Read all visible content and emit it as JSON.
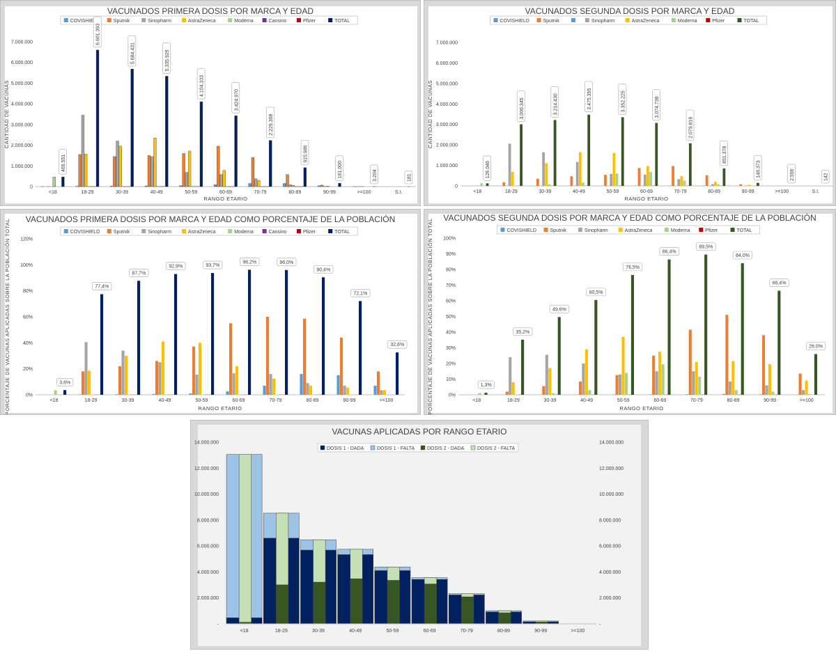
{
  "colors": {
    "COVISHIELD": "#5b9bd5",
    "Sputnik": "#ed7d31",
    "Sinopharm": "#a5a5a5",
    "AstraZeneca": "#ffc000",
    "Moderna": "#a9d18e",
    "Cansino": "#7030a0",
    "Pfizer": "#c00000",
    "TOTAL1": "#002060",
    "TOTAL2": "#375623",
    "D1_DADA": "#002060",
    "D1_FALTA": "#9dc3e6",
    "D2_DADA": "#375623",
    "D2_FALTA": "#c5e0b4"
  },
  "chart_data": [
    {
      "id": "c1",
      "type": "bar",
      "title": "VACUNADOS PRIMERA DOSIS POR MARCA Y EDAD",
      "xlabel": "RANGO ETARIO",
      "ylabel": "CANTIDAD DE VACUNAS",
      "ylim": [
        0,
        7000000
      ],
      "yticks": [
        "0",
        "1.000.000",
        "2.000.000",
        "3.000.000",
        "4.000.000",
        "5.000.000",
        "6.000.000",
        "7.000.000"
      ],
      "categories": [
        "<18",
        "18-29",
        "30-39",
        "40-49",
        "50-59",
        "60-69",
        "70-79",
        "80-89",
        "90-99",
        ">=100",
        "S.I."
      ],
      "series": [
        {
          "name": "COVISHIELD",
          "values": [
            2000,
            15000,
            20000,
            30000,
            40000,
            90000,
            150000,
            150000,
            40000,
            1000,
            0
          ]
        },
        {
          "name": "Sputnik",
          "values": [
            0,
            1550000,
            1450000,
            1500000,
            1600000,
            1950000,
            1400000,
            580000,
            70000,
            2000,
            0
          ]
        },
        {
          "name": "Sinopharm",
          "values": [
            2000,
            3450000,
            2200000,
            1450000,
            680000,
            580000,
            380000,
            90000,
            10000,
            500,
            0
          ]
        },
        {
          "name": "AstraZeneca",
          "values": [
            0,
            1570000,
            1960000,
            2350000,
            1720000,
            780000,
            300000,
            60000,
            20000,
            500,
            0
          ]
        },
        {
          "name": "Moderna",
          "values": [
            460000,
            5000,
            5000,
            5000,
            5000,
            5000,
            5000,
            5000,
            0,
            0,
            0
          ]
        },
        {
          "name": "Cansino",
          "values": [
            0,
            5000,
            5000,
            5000,
            5000,
            5000,
            5000,
            5000,
            0,
            0,
            0
          ]
        },
        {
          "name": "Pfizer",
          "values": [
            0,
            5000,
            5000,
            5000,
            5000,
            5000,
            5000,
            5000,
            0,
            0,
            0
          ]
        },
        {
          "name": "TOTAL",
          "values": [
            469551,
            6601393,
            5684431,
            5335929,
            4104103,
            3424970,
            2229308,
            915986,
            161000,
            3204,
            181
          ]
        }
      ],
      "data_labels": [
        "469.551",
        "6.601.393",
        "5.684.431",
        "5.335.929",
        "4.104.103",
        "3.424.970",
        "2.229.308",
        "915.986",
        "161.000",
        "3.204",
        "181"
      ]
    },
    {
      "id": "c2",
      "type": "bar",
      "title": "VACUNADOS SEGUNDA DOSIS POR MARCA Y EDAD",
      "xlabel": "RANGO ETARIO",
      "ylabel": "CANTIDAD DE VACUNAS",
      "ylim": [
        0,
        7000000
      ],
      "yticks": [
        "0",
        "1.000.000",
        "2.000.000",
        "3.000.000",
        "4.000.000",
        "5.000.000",
        "6.000.000",
        "7.000.000"
      ],
      "categories": [
        "<18",
        "18-29",
        "30-39",
        "40-49",
        "50-59",
        "60-69",
        "70-79",
        "80-89",
        "90-99",
        ">=100",
        "S.I."
      ],
      "series": [
        {
          "name": "COVISHIELD",
          "values": [
            0,
            5000,
            5000,
            10000,
            10000,
            10000,
            10000,
            10000,
            0,
            0,
            0
          ]
        },
        {
          "name": "Sputnik",
          "values": [
            0,
            180000,
            350000,
            470000,
            540000,
            870000,
            970000,
            520000,
            80000,
            2000,
            0
          ]
        },
        {
          "name": "",
          "values": [
            0,
            5000,
            5000,
            5000,
            5000,
            5000,
            5000,
            5000,
            0,
            0,
            0
          ]
        },
        {
          "name": "Sinopharm",
          "values": [
            20000,
            2060000,
            1640000,
            1170000,
            580000,
            550000,
            330000,
            90000,
            20000,
            500,
            0
          ]
        },
        {
          "name": "AstraZeneca",
          "values": [
            0,
            680000,
            1110000,
            1650000,
            1610000,
            970000,
            480000,
            210000,
            50000,
            500,
            0
          ]
        },
        {
          "name": "Moderna",
          "values": [
            130000,
            5000,
            80000,
            160000,
            600000,
            680000,
            260000,
            80000,
            20000,
            0,
            0
          ]
        },
        {
          "name": "Pfizer",
          "values": [
            0,
            5000,
            5000,
            5000,
            5000,
            5000,
            5000,
            5000,
            0,
            0,
            0
          ]
        },
        {
          "name": "TOTAL",
          "values": [
            126046,
            3006345,
            3214430,
            3475355,
            3352225,
            3074738,
            2079616,
            851378,
            148373,
            2556,
            142
          ]
        }
      ],
      "data_labels": [
        "126.046",
        "3.006.345",
        "3.214.430",
        "3.475.355",
        "3.352.225",
        "3.074.738",
        "2.079.616",
        "851.378",
        "148.373",
        "2.556",
        "142"
      ]
    },
    {
      "id": "c3",
      "type": "bar",
      "title": "VACUNADOS PRIMERA DOSIS POR MARCA Y EDAD COMO PORCENTAJE DE LA POBLACIÓN",
      "xlabel": "RANGO ETARIO",
      "ylabel": "PORCENTAJE DE VACUNAS APLICADAS SOBRE LA POBLACIÓN TOTAL",
      "ylim": [
        0,
        120
      ],
      "yticks": [
        "0%",
        "20%",
        "40%",
        "60%",
        "80%",
        "100%",
        "120%"
      ],
      "categories": [
        "<18",
        "18-29",
        "30-39",
        "40-49",
        "50-59",
        "60-69",
        "70-79",
        "80-89",
        "90-99",
        ">=100"
      ],
      "series": [
        {
          "name": "COVISHIELD",
          "values": [
            0,
            0.3,
            0.4,
            0.6,
            1.0,
            2.6,
            7.0,
            16.0,
            15.0,
            7.0
          ]
        },
        {
          "name": "Sputnik",
          "values": [
            0,
            18,
            22,
            26,
            37,
            55,
            60,
            58.5,
            44,
            18
          ]
        },
        {
          "name": "Sinopharm",
          "values": [
            0,
            40.5,
            34,
            25,
            15.5,
            16.5,
            16,
            9,
            7,
            3.5
          ]
        },
        {
          "name": "AstraZeneca",
          "values": [
            0,
            18.5,
            30,
            41,
            40,
            22,
            12.5,
            7,
            5.5,
            3.5
          ]
        },
        {
          "name": "Moderna",
          "values": [
            3.5,
            0.1,
            0.1,
            0.1,
            0.1,
            0.1,
            0.1,
            0.2,
            0.2,
            0.1
          ]
        },
        {
          "name": "Cansino",
          "values": [
            0,
            0.1,
            0.1,
            0.1,
            0.1,
            0.1,
            0.1,
            0.1,
            0,
            0
          ]
        },
        {
          "name": "Pfizer",
          "values": [
            0,
            0.1,
            0.1,
            0.1,
            0.1,
            0.1,
            0.1,
            0.1,
            0,
            0
          ]
        },
        {
          "name": "TOTAL",
          "values": [
            3.6,
            77.4,
            87.7,
            92.9,
            93.7,
            96.2,
            96.0,
            90.4,
            72.1,
            32.6
          ]
        }
      ],
      "data_labels": [
        "3,6%",
        "77,4%",
        "87,7%",
        "92,9%",
        "93,7%",
        "96,2%",
        "96,0%",
        "90,4%",
        "72,1%",
        "32,6%"
      ]
    },
    {
      "id": "c4",
      "type": "bar",
      "title": "VACUNADOS SEGUNDA DOSIS POR MARCA Y EDAD COMO PORCENTAJE DE LA POBLACIÓN",
      "xlabel": "RANGO ETARIO",
      "ylabel": "PORCENTAJE DE VACUNAS APLICADAS SOBRE LA POBLACIÓN TOTAL",
      "ylim": [
        0,
        100
      ],
      "yticks": [
        "0%",
        "10%",
        "20%",
        "30%",
        "40%",
        "50%",
        "60%",
        "70%",
        "80%",
        "90%",
        "100%"
      ],
      "categories": [
        "<18",
        "18-29",
        "30-39",
        "40-49",
        "50-59",
        "60-69",
        "70-79",
        "80-89",
        "90-99",
        ">=100"
      ],
      "series": [
        {
          "name": "COVISHIELD",
          "values": [
            0,
            0.1,
            0.1,
            0.1,
            0.2,
            0.2,
            0.3,
            0.5,
            0.3,
            0.1
          ]
        },
        {
          "name": "Sputnik",
          "values": [
            0,
            2,
            5.5,
            8.5,
            12.5,
            25,
            41.5,
            51,
            38,
            13.5
          ]
        },
        {
          "name": "Sinopharm",
          "values": [
            0.1,
            24,
            25.5,
            20,
            13,
            15,
            15,
            8.5,
            6,
            3
          ]
        },
        {
          "name": "AstraZeneca",
          "values": [
            0,
            8,
            17,
            29,
            37,
            27.5,
            21,
            21.5,
            19.5,
            9
          ]
        },
        {
          "name": "Moderna",
          "values": [
            1.1,
            0.1,
            1.0,
            3.0,
            14,
            19.5,
            11.5,
            3.0,
            2.0,
            0.5
          ]
        },
        {
          "name": "Pfizer",
          "values": [
            0,
            0.1,
            0.1,
            0.1,
            0.1,
            0.1,
            0.1,
            0.1,
            0.1,
            0
          ]
        },
        {
          "name": "TOTAL",
          "values": [
            1.3,
            35.2,
            49.6,
            60.5,
            76.5,
            86.4,
            89.5,
            84.0,
            66.4,
            26.0
          ]
        }
      ],
      "data_labels": [
        "1,3%",
        "35,2%",
        "49,6%",
        "60,5%",
        "76,5%",
        "86,4%",
        "89,5%",
        "84,0%",
        "66,4%",
        "26,0%"
      ]
    },
    {
      "id": "c5",
      "type": "bar",
      "title": "VACUNAS APLICADAS POR RANGO ETARIO",
      "xlabel": "",
      "ylabel": "",
      "ylim": [
        0,
        14000000
      ],
      "yticks": [
        "-",
        "2.000.000",
        "4.000.000",
        "6.000.000",
        "8.000.000",
        "10.000.000",
        "12.000.000",
        "14.000.000"
      ],
      "categories": [
        "<18",
        "18-29",
        "30-39",
        "40-49",
        "50-59",
        "60-69",
        "70-79",
        "80-89",
        "90-99",
        ">=100"
      ],
      "legend": [
        "DOSIS 1 - DADA",
        "DOSIS 1 - FALTA",
        "DOSIS 2 - DADA",
        "DOSIS 2 - FALTA"
      ],
      "population": [
        13050000,
        8530000,
        6480000,
        5745000,
        4380000,
        3560000,
        2322000,
        1013000,
        223000,
        9800
      ],
      "dosis1_dada": [
        469551,
        6601393,
        5684431,
        5335929,
        4104103,
        3424970,
        2229308,
        915986,
        161000,
        3204
      ],
      "dosis2_dada": [
        126046,
        3006345,
        3214430,
        3475355,
        3352225,
        3074738,
        2079616,
        851378,
        148373,
        2556
      ]
    }
  ]
}
